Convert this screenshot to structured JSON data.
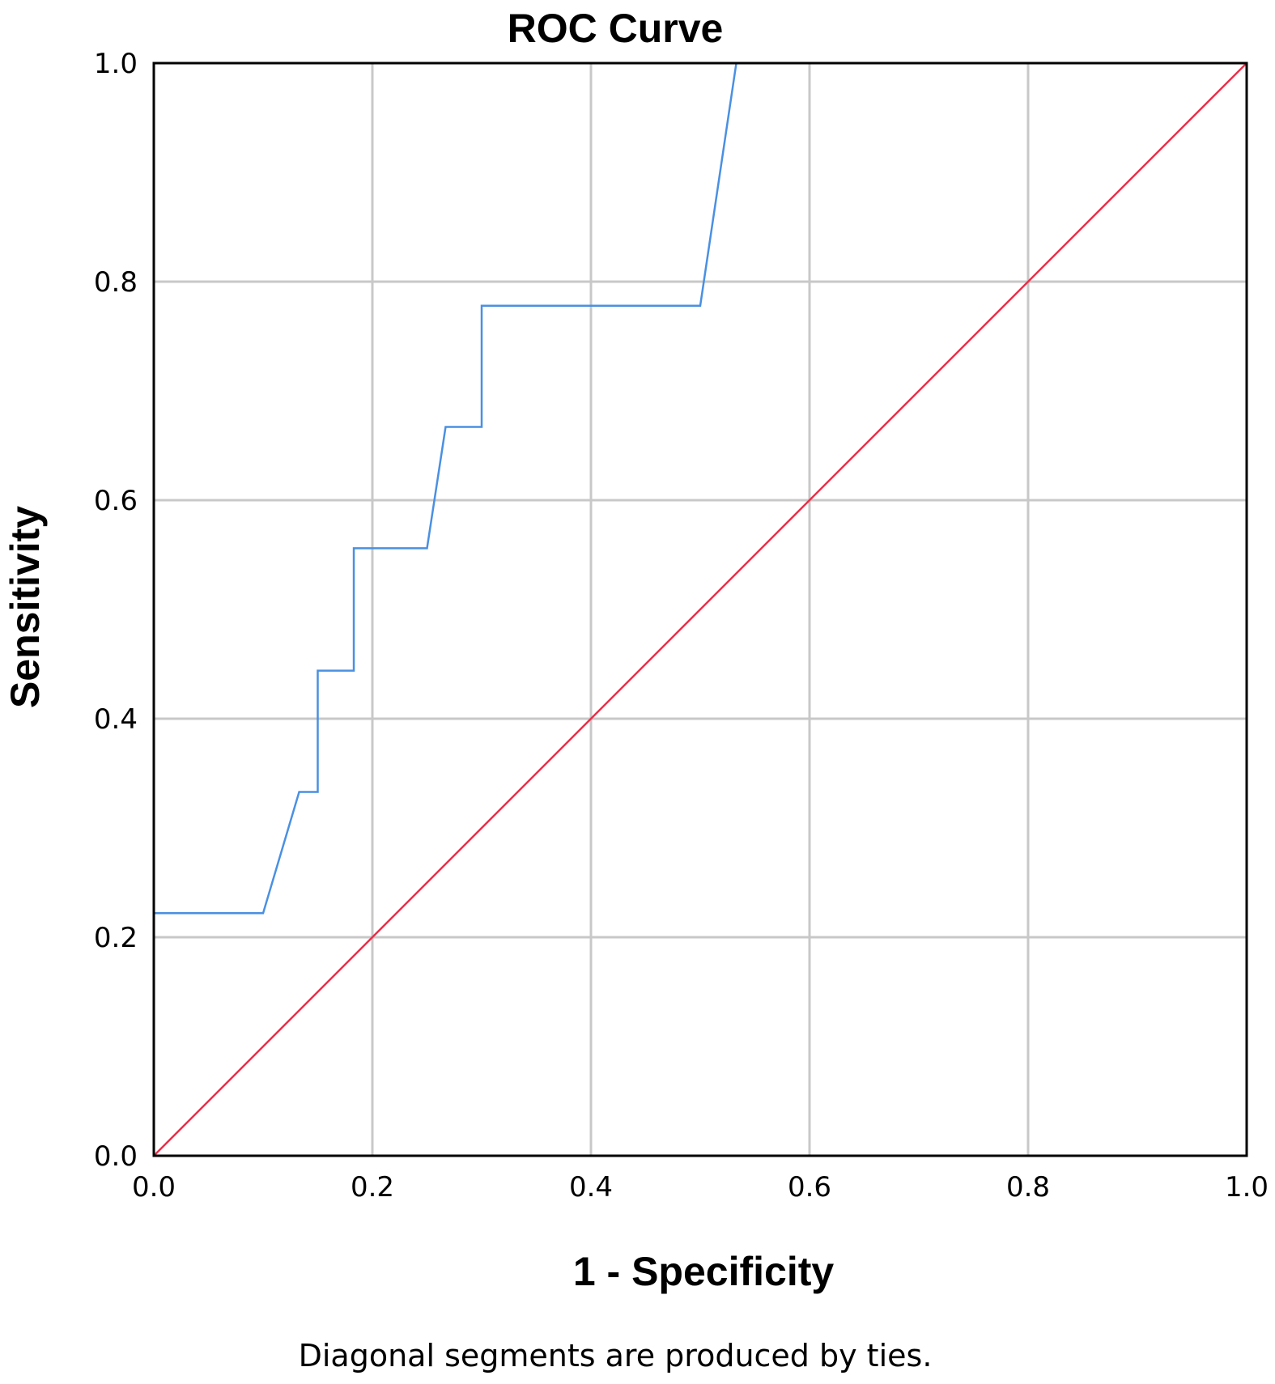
{
  "chart_data": {
    "type": "line",
    "title": "ROC Curve",
    "xlabel": "1 - Specificity",
    "ylabel": "Sensitivity",
    "xlim": [
      0,
      1
    ],
    "ylim": [
      0,
      1
    ],
    "xticks": [
      "0.0",
      "0.2",
      "0.4",
      "0.6",
      "0.8",
      "1.0"
    ],
    "yticks": [
      "0.0",
      "0.2",
      "0.4",
      "0.6",
      "0.8",
      "1.0"
    ],
    "grid": true,
    "footnote": "Diagonal segments are produced by ties.",
    "series": [
      {
        "color": "#4a90e2",
        "points": [
          [
            0.0,
            0.0
          ],
          [
            0.0,
            0.222
          ],
          [
            0.1,
            0.222
          ],
          [
            0.133,
            0.333
          ],
          [
            0.15,
            0.333
          ],
          [
            0.15,
            0.444
          ],
          [
            0.183,
            0.444
          ],
          [
            0.183,
            0.556
          ],
          [
            0.25,
            0.556
          ],
          [
            0.267,
            0.667
          ],
          [
            0.3,
            0.667
          ],
          [
            0.3,
            0.778
          ],
          [
            0.5,
            0.778
          ],
          [
            0.533,
            1.0
          ],
          [
            1.0,
            1.0
          ]
        ]
      },
      {
        "color": "#e8304a",
        "points": [
          [
            0.0,
            0.0
          ],
          [
            1.0,
            1.0
          ]
        ]
      }
    ]
  }
}
